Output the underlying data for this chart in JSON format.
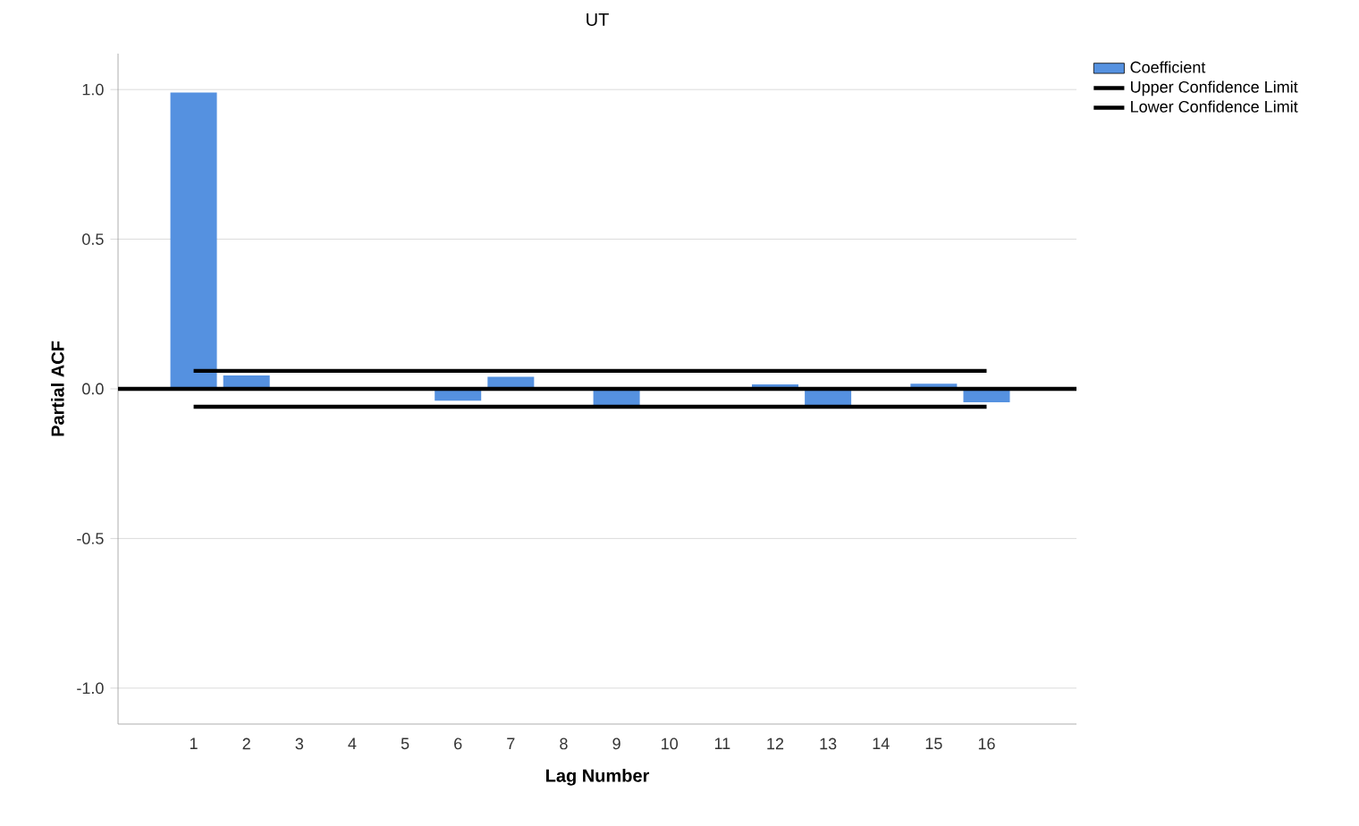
{
  "chart_data": {
    "type": "bar",
    "title": "UT",
    "xlabel": "Lag Number",
    "ylabel": "Partial ACF",
    "categories": [
      "1",
      "2",
      "3",
      "4",
      "5",
      "6",
      "7",
      "8",
      "9",
      "10",
      "11",
      "12",
      "13",
      "14",
      "15",
      "16"
    ],
    "series": [
      {
        "name": "Coefficient",
        "color": "#5591e0",
        "values": [
          0.99,
          0.045,
          null,
          null,
          null,
          -0.04,
          0.04,
          0.0,
          -0.055,
          null,
          null,
          0.015,
          -0.055,
          0.0,
          0.017,
          -0.045
        ]
      },
      {
        "name": "Upper Confidence Limit",
        "type": "line",
        "color": "#000000",
        "values": [
          0.06,
          0.06,
          0.06,
          0.06,
          0.06,
          0.06,
          0.06,
          0.06,
          0.06,
          0.06,
          0.06,
          0.06,
          0.06,
          0.06,
          0.06,
          0.06
        ]
      },
      {
        "name": "Lower Confidence Limit",
        "type": "line",
        "color": "#000000",
        "values": [
          -0.06,
          -0.06,
          -0.06,
          -0.06,
          -0.06,
          -0.06,
          -0.06,
          -0.06,
          -0.06,
          -0.06,
          -0.06,
          -0.06,
          -0.06,
          -0.06,
          -0.06,
          -0.06
        ]
      }
    ],
    "ylim": [
      -1.12,
      1.12
    ],
    "yticks": [
      {
        "value": -1.0,
        "label": "-1.0"
      },
      {
        "value": -0.5,
        "label": "-0.5"
      },
      {
        "value": 0,
        "label": "0.0"
      },
      {
        "value": 0.5,
        "label": "0.5"
      },
      {
        "value": 1.0,
        "label": "1.0"
      }
    ],
    "ref_lines": [
      {
        "axis": "y",
        "value": 0,
        "color": "#000000"
      }
    ],
    "grid": "y",
    "legend": "top right"
  }
}
